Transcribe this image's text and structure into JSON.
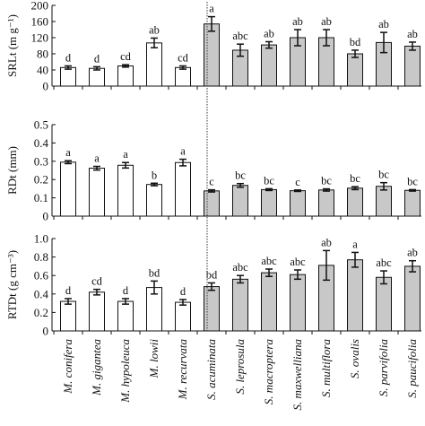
{
  "chart_data": [
    {
      "type": "bar",
      "ylabel": "SRLt (m g⁻¹)",
      "ylim": [
        0,
        200
      ],
      "yticks": [
        "0",
        "40",
        "80",
        "120",
        "160",
        "200"
      ],
      "categories": [
        "M. conifera",
        "M. gigantea",
        "M. hypoleuca",
        "M. lowii",
        "M. recurvata",
        "S. acuminata",
        "S. leprosula",
        "S. macroptera",
        "S. maxwelliana",
        "S. multiflora",
        "S. ovalis",
        "S. parvifolia",
        "S. paucifolia"
      ],
      "values": [
        46,
        44,
        50,
        107,
        46,
        154,
        89,
        102,
        120,
        120,
        80,
        108,
        99
      ],
      "errors": [
        4,
        4,
        3,
        12,
        4,
        18,
        15,
        8,
        20,
        20,
        9,
        25,
        10
      ],
      "letters": [
        "d",
        "d",
        "cd",
        "ab",
        "cd",
        "a",
        "abc",
        "ab",
        "ab",
        "ab",
        "bd",
        "ab",
        "ab"
      ]
    },
    {
      "type": "bar",
      "ylabel": "RDt (mm)",
      "ylim": [
        0,
        0.5
      ],
      "yticks": [
        "0",
        "0.1",
        "0.2",
        "0.3",
        "0.4",
        "0.5"
      ],
      "categories": [
        "M. conifera",
        "M. gigantea",
        "M. hypoleuca",
        "M. lowii",
        "M. recurvata",
        "S. acuminata",
        "S. leprosula",
        "S. macroptera",
        "S. maxwelliana",
        "S. multiflora",
        "S. ovalis",
        "S. parvifolia",
        "S. paucifolia"
      ],
      "values": [
        0.295,
        0.262,
        0.278,
        0.173,
        0.293,
        0.138,
        0.168,
        0.145,
        0.139,
        0.143,
        0.153,
        0.163,
        0.141
      ],
      "errors": [
        0.008,
        0.01,
        0.015,
        0.007,
        0.018,
        0.006,
        0.01,
        0.005,
        0.004,
        0.006,
        0.008,
        0.02,
        0.004
      ],
      "letters": [
        "a",
        "a",
        "a",
        "b",
        "a",
        "c",
        "bc",
        "bc",
        "c",
        "bc",
        "bc",
        "bc",
        "bc"
      ]
    },
    {
      "type": "bar",
      "ylabel": "RTDt (g cm⁻³)",
      "ylim": [
        0,
        1.0
      ],
      "yticks": [
        "0",
        "0.2",
        "0.4",
        "0.6",
        "0.8",
        "1.0"
      ],
      "categories": [
        "M. conifera",
        "M. gigantea",
        "M. hypoleuca",
        "M. lowii",
        "M. recurvata",
        "S. acuminata",
        "S. leprosula",
        "S. macroptera",
        "S. maxwelliana",
        "S. multiflora",
        "S. ovalis",
        "S. parvifolia",
        "S. paucifolia"
      ],
      "values": [
        0.32,
        0.42,
        0.32,
        0.47,
        0.31,
        0.48,
        0.56,
        0.63,
        0.61,
        0.71,
        0.77,
        0.58,
        0.7
      ],
      "errors": [
        0.03,
        0.03,
        0.03,
        0.07,
        0.03,
        0.04,
        0.04,
        0.04,
        0.05,
        0.16,
        0.08,
        0.07,
        0.06
      ],
      "letters": [
        "d",
        "cd",
        "d",
        "bd",
        "d",
        "bd",
        "abc",
        "abc",
        "abc",
        "ab",
        "a",
        "abc",
        "ab"
      ]
    }
  ],
  "colors": {
    "open_bar": "#ffffff",
    "shaded_bar": "#c8c8c8",
    "stroke": "#111111"
  }
}
